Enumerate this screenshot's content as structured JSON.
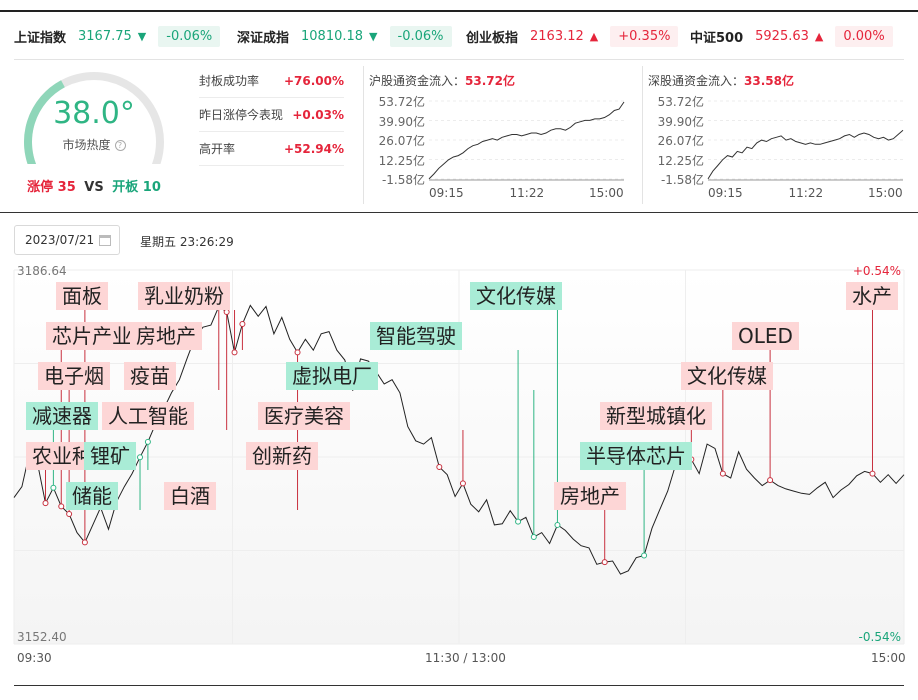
{
  "indices": [
    {
      "name": "上证指数",
      "value": "3167.75",
      "arrow": "▼",
      "pct": "-0.06%",
      "dir": "down"
    },
    {
      "name": "深证成指",
      "value": "10810.18",
      "arrow": "▼",
      "pct": "-0.06%",
      "dir": "down"
    },
    {
      "name": "创业板指",
      "value": "2163.12",
      "arrow": "▲",
      "pct": "+0.35%",
      "dir": "up"
    },
    {
      "name": "中证500",
      "value": "5925.63",
      "arrow": "▲",
      "pct": "0.00%",
      "dir": "up"
    }
  ],
  "heat": {
    "value": "38.0°",
    "label": "市场热度",
    "level": 0.38,
    "help_icon": "question-circle-icon"
  },
  "limit": {
    "up_label": "涨停",
    "up_count": "35",
    "vs": "VS",
    "open_label": "开板",
    "open_count": "10"
  },
  "stats": [
    {
      "label": "封板成功率",
      "value": "+76.00%"
    },
    {
      "label": "昨日涨停今表现",
      "value": "+0.03%"
    },
    {
      "label": "高开率",
      "value": "+52.94%"
    }
  ],
  "flows": [
    {
      "title": "沪股通资金流入：",
      "value": "53.72亿",
      "yticks": [
        "53.72亿",
        "39.90亿",
        "26.07亿",
        "12.25亿",
        "-1.58亿"
      ],
      "xticks": [
        "09:15",
        "11:22",
        "15:00"
      ],
      "series": [
        -1.5,
        2,
        6,
        9,
        12,
        14,
        15,
        17,
        20,
        22,
        23,
        25,
        26,
        27,
        26,
        28,
        29,
        30,
        30,
        29,
        30,
        31,
        31,
        30,
        31,
        33,
        34,
        34,
        33,
        35,
        38,
        39,
        40,
        40,
        41,
        41,
        42,
        44,
        47,
        48,
        53
      ]
    },
    {
      "title": "深股通资金流入：",
      "value": "33.58亿",
      "yticks": [
        "53.72亿",
        "39.90亿",
        "26.07亿",
        "12.25亿",
        "-1.58亿"
      ],
      "xticks": [
        "09:15",
        "11:22",
        "15:00"
      ],
      "series": [
        -1.5,
        4,
        8,
        12,
        15,
        14,
        18,
        17,
        21,
        20,
        24,
        26,
        25,
        27,
        28,
        29,
        26,
        27,
        25,
        24,
        23,
        24,
        23,
        23,
        24,
        25,
        26,
        27,
        29,
        30,
        28,
        30,
        31,
        30,
        28,
        27,
        28,
        26,
        27,
        30,
        33
      ]
    }
  ],
  "date": {
    "value": "2023/07/21",
    "weekday": "星期五 23:26:29",
    "calendar_icon": "calendar-icon"
  },
  "chart_data": {
    "type": "line",
    "title": "",
    "ylim": [
      3152.4,
      3186.64
    ],
    "y_top_label": "3186.64",
    "y_bottom_label": "3152.40",
    "pct_top": "+0.54%",
    "pct_bottom": "-0.54%",
    "xticks": [
      "09:30",
      "11:30 / 13:00",
      "15:00"
    ],
    "series": [
      {
        "name": "",
        "values": [
          3165.8,
          3166.8,
          3170.0,
          3168.9,
          3165.3,
          3166.7,
          3165.0,
          3164.3,
          3162.6,
          3161.7,
          3163.3,
          3164.9,
          3162.9,
          3165.4,
          3166.8,
          3168.0,
          3169.5,
          3170.9,
          3172.6,
          3173.9,
          3175.4,
          3176.6,
          3178.6,
          3180.5,
          3181.4,
          3181.6,
          3183.3,
          3182.8,
          3179.1,
          3181.7,
          3183.4,
          3182.4,
          3183.3,
          3180.8,
          3182.3,
          3180.3,
          3179.1,
          3180.3,
          3179.3,
          3180.8,
          3181.0,
          3179.3,
          3178.4,
          3175.6,
          3178.5,
          3178.3,
          3177.3,
          3176.2,
          3176.6,
          3175.4,
          3172.3,
          3171.0,
          3170.7,
          3171.3,
          3168.6,
          3167.9,
          3165.9,
          3167.1,
          3165.2,
          3164.5,
          3165.6,
          3163.3,
          3163.4,
          3164.6,
          3163.6,
          3164.0,
          3162.2,
          3162.6,
          3161.6,
          3163.3,
          3162.8,
          3162.0,
          3161.4,
          3161.2,
          3159.7,
          3159.9,
          3160.0,
          3158.8,
          3159.1,
          3160.3,
          3160.5,
          3163.0,
          3164.7,
          3166.4,
          3168.8,
          3170.0,
          3169.3,
          3168.0,
          3170.7,
          3170.3,
          3168.0,
          3167.6,
          3170.0,
          3168.4,
          3167.6,
          3166.9,
          3167.4,
          3166.9,
          3166.6,
          3166.4,
          3166.2,
          3166.1,
          3166.7,
          3167.2,
          3165.8,
          3166.5,
          3167.0,
          3167.8,
          3168.2,
          3168.0,
          3167.2,
          3167.9,
          3167.1,
          3167.9
        ]
      }
    ],
    "tags": [
      {
        "text": "面板",
        "color": "pink"
      },
      {
        "text": "乳业奶粉",
        "color": "pink"
      },
      {
        "text": "芯片产业",
        "color": "pink"
      },
      {
        "text": "房地产",
        "color": "pink"
      },
      {
        "text": "电子烟",
        "color": "pink"
      },
      {
        "text": "疫苗",
        "color": "pink"
      },
      {
        "text": "减速器",
        "color": "green"
      },
      {
        "text": "人工智能",
        "color": "pink"
      },
      {
        "text": "农业种",
        "color": "pink"
      },
      {
        "text": "锂矿",
        "color": "green"
      },
      {
        "text": "储能",
        "color": "green"
      },
      {
        "text": "白酒",
        "color": "pink"
      },
      {
        "text": "创新药",
        "color": "pink"
      },
      {
        "text": "医疗美容",
        "color": "pink"
      },
      {
        "text": "虚拟电厂",
        "color": "green"
      },
      {
        "text": "智能驾驶",
        "color": "green"
      },
      {
        "text": "文化传媒",
        "color": "green"
      },
      {
        "text": "房地产",
        "color": "pink"
      },
      {
        "text": "半导体芯片",
        "color": "green"
      },
      {
        "text": "新型城镇化",
        "color": "pink"
      },
      {
        "text": "文化传媒",
        "color": "pink"
      },
      {
        "text": "OLED",
        "color": "pink"
      },
      {
        "text": "水产",
        "color": "pink"
      }
    ]
  }
}
